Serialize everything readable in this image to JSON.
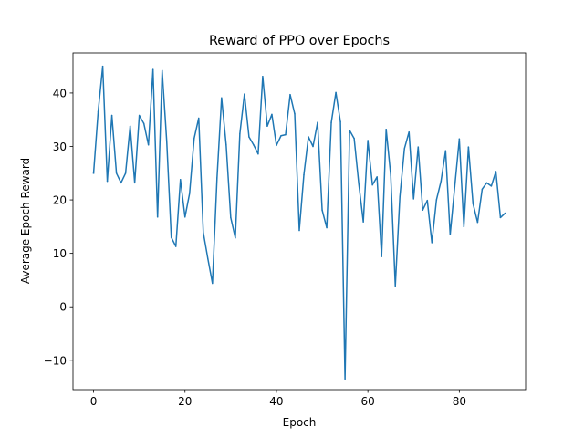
{
  "chart_data": {
    "type": "line",
    "title": "Reward of PPO over Epochs",
    "xlabel": "Epoch",
    "ylabel": "Average Epoch Reward",
    "xlim": [
      -4.5,
      94.5
    ],
    "ylim": [
      -15.5,
      47.5
    ],
    "xticks": [
      0,
      20,
      40,
      60,
      80
    ],
    "yticks": [
      -10,
      0,
      10,
      20,
      30,
      40
    ],
    "ytick_labels": [
      "−10",
      "0",
      "10",
      "20",
      "30",
      "40"
    ],
    "grid": false,
    "color": "#1f77b4",
    "series": [
      {
        "x": [
          0,
          1,
          2,
          3,
          4,
          5,
          6,
          7,
          8,
          9,
          10,
          11,
          12,
          13,
          14,
          15,
          16,
          17,
          18,
          19,
          20,
          21,
          22,
          23,
          24,
          25,
          26,
          27,
          28,
          29,
          30,
          31,
          32,
          33,
          34,
          35,
          36,
          37,
          38,
          39,
          40,
          41,
          42,
          43,
          44,
          45,
          46,
          47,
          48,
          49,
          50,
          51,
          52,
          53,
          54,
          55,
          56,
          57,
          58,
          59,
          60,
          61,
          62,
          63,
          64,
          65,
          66,
          67,
          68,
          69,
          70,
          71,
          72,
          73,
          74,
          75,
          76,
          77,
          78,
          79,
          80,
          81,
          82,
          83,
          84,
          85,
          86,
          87,
          88,
          89,
          90
        ],
        "values": [
          25,
          36.5,
          45,
          23.5,
          35.8,
          25,
          23.2,
          25,
          33.8,
          23.2,
          35.8,
          34.3,
          30.3,
          44.4,
          16.8,
          44.2,
          31,
          13,
          11.3,
          23.8,
          16.8,
          21.2,
          31.5,
          35.3,
          13.9,
          9,
          4.4,
          24.1,
          39.1,
          30.3,
          16.7,
          12.9,
          32.4,
          39.8,
          31.8,
          30.3,
          28.6,
          43.1,
          33.8,
          36,
          30.2,
          32,
          32.2,
          39.7,
          36.1,
          14.3,
          24.7,
          31.8,
          30,
          34.5,
          18.1,
          14.8,
          34.5,
          40.1,
          34.6,
          -13.5,
          33,
          31.5,
          23.1,
          15.9,
          31.1,
          22.8,
          24.3,
          9.4,
          33.2,
          24.6,
          3.9,
          20.6,
          29.6,
          32.7,
          20.2,
          29.9,
          18.1,
          19.9,
          12,
          20,
          23.5,
          29.2,
          13.5,
          22.5,
          31.4,
          15,
          29.9,
          19.3,
          15.8,
          22,
          23.2,
          22.6,
          25.3,
          16.7,
          17.5
        ]
      }
    ]
  }
}
